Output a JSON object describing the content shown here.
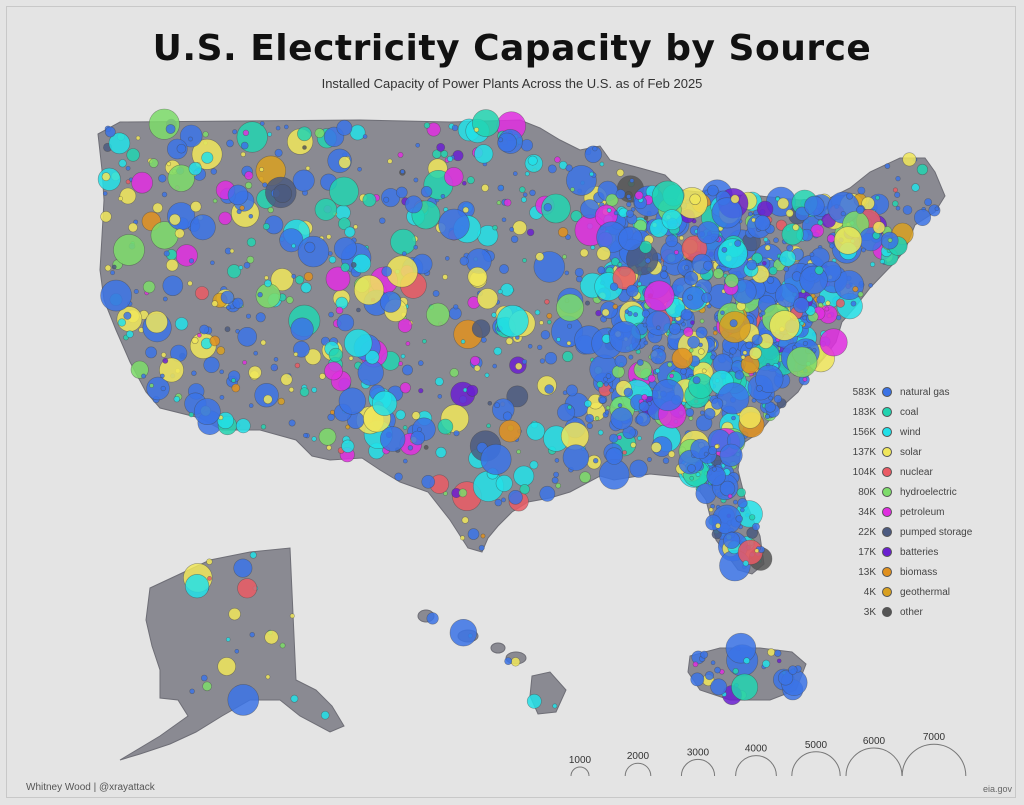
{
  "title": "U.S. Electricity Capacity by Source",
  "subtitle": "Installed Capacity of Power Plants Across the U.S. as of Feb 2025",
  "credit": "Whitney Wood | @xrayattack",
  "source": "eia.gov",
  "land_color": "#8a8a92",
  "background": "#e4e4e4",
  "legend": [
    {
      "value": "583K",
      "label": "natural gas",
      "color": "#3b73e6"
    },
    {
      "value": "183K",
      "label": "coal",
      "color": "#22d3b0"
    },
    {
      "value": "156K",
      "label": "wind",
      "color": "#22e0e8"
    },
    {
      "value": "137K",
      "label": "solar",
      "color": "#f0e65a"
    },
    {
      "value": "104K",
      "label": "nuclear",
      "color": "#ea5a64"
    },
    {
      "value": "80K",
      "label": "hydroelectric",
      "color": "#7ddc6a"
    },
    {
      "value": "34K",
      "label": "petroleum",
      "color": "#e02ee0"
    },
    {
      "value": "22K",
      "label": "pumped storage",
      "color": "#4b5a80"
    },
    {
      "value": "17K",
      "label": "batteries",
      "color": "#6a1fd0"
    },
    {
      "value": "13K",
      "label": "biomass",
      "color": "#e0901e"
    },
    {
      "value": "4K",
      "label": "geothermal",
      "color": "#d9a020"
    },
    {
      "value": "3K",
      "label": "other",
      "color": "#555555"
    }
  ],
  "size_legend": [
    "1000",
    "2000",
    "3000",
    "4000",
    "5000",
    "6000",
    "7000"
  ]
}
